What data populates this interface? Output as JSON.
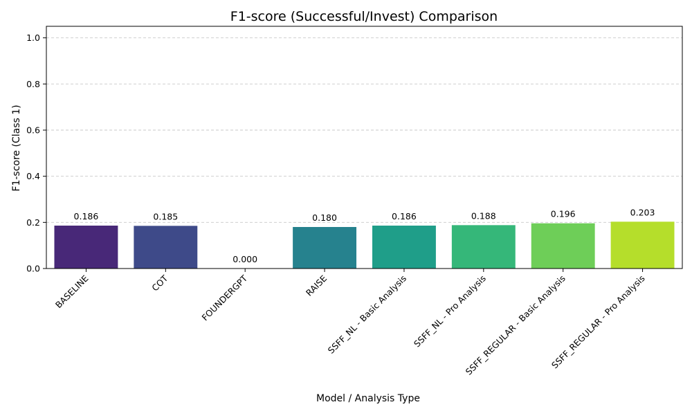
{
  "chart_data": {
    "type": "bar",
    "title": "F1-score (Successful/Invest) Comparison",
    "xlabel": "Model / Analysis Type",
    "ylabel": "F1-score (Class 1)",
    "categories": [
      "BASELINE",
      "COT",
      "FOUNDERGPT",
      "RAISE",
      "SSFF_NL - Basic Analysis",
      "SSFF_NL - Pro Analysis",
      "SSFF_REGULAR - Basic Analysis",
      "SSFF_REGULAR - Pro Analysis"
    ],
    "values": [
      0.186,
      0.185,
      0.0,
      0.18,
      0.186,
      0.188,
      0.196,
      0.203
    ],
    "value_labels": [
      "0.186",
      "0.185",
      "0.000",
      "0.180",
      "0.186",
      "0.188",
      "0.196",
      "0.203"
    ],
    "colors": [
      "#482878",
      "#3e4a89",
      "#31688e",
      "#26828e",
      "#1f9e89",
      "#35b779",
      "#6ece58",
      "#b5de2b"
    ],
    "ylim": [
      0,
      1.05
    ],
    "yticks": [
      0.0,
      0.2,
      0.4,
      0.6,
      0.8,
      1.0
    ],
    "ytick_labels": [
      "0.0",
      "0.2",
      "0.4",
      "0.6",
      "0.8",
      "1.0"
    ],
    "grid": true,
    "legend": "none"
  }
}
